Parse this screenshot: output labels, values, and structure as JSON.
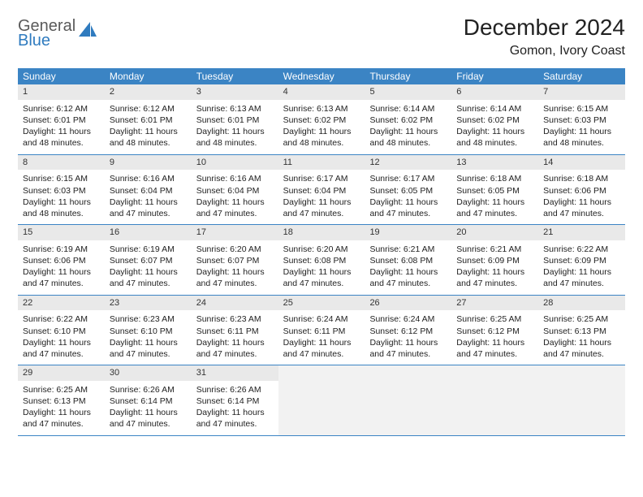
{
  "logo": {
    "line1": "General",
    "line2": "Blue"
  },
  "title": "December 2024",
  "location": "Gomon, Ivory Coast",
  "colors": {
    "header_bg": "#3b84c4",
    "header_fg": "#ffffff",
    "daynum_bg": "#e9e9e9",
    "row_border": "#3b84c4",
    "logo_blue": "#2f7bbf",
    "logo_gray": "#5a5a5a",
    "text": "#222222",
    "page_bg": "#ffffff"
  },
  "weekdays": [
    "Sunday",
    "Monday",
    "Tuesday",
    "Wednesday",
    "Thursday",
    "Friday",
    "Saturday"
  ],
  "days": [
    {
      "n": 1,
      "sunrise": "6:12 AM",
      "sunset": "6:01 PM",
      "daylight": "11 hours and 48 minutes."
    },
    {
      "n": 2,
      "sunrise": "6:12 AM",
      "sunset": "6:01 PM",
      "daylight": "11 hours and 48 minutes."
    },
    {
      "n": 3,
      "sunrise": "6:13 AM",
      "sunset": "6:01 PM",
      "daylight": "11 hours and 48 minutes."
    },
    {
      "n": 4,
      "sunrise": "6:13 AM",
      "sunset": "6:02 PM",
      "daylight": "11 hours and 48 minutes."
    },
    {
      "n": 5,
      "sunrise": "6:14 AM",
      "sunset": "6:02 PM",
      "daylight": "11 hours and 48 minutes."
    },
    {
      "n": 6,
      "sunrise": "6:14 AM",
      "sunset": "6:02 PM",
      "daylight": "11 hours and 48 minutes."
    },
    {
      "n": 7,
      "sunrise": "6:15 AM",
      "sunset": "6:03 PM",
      "daylight": "11 hours and 48 minutes."
    },
    {
      "n": 8,
      "sunrise": "6:15 AM",
      "sunset": "6:03 PM",
      "daylight": "11 hours and 48 minutes."
    },
    {
      "n": 9,
      "sunrise": "6:16 AM",
      "sunset": "6:04 PM",
      "daylight": "11 hours and 47 minutes."
    },
    {
      "n": 10,
      "sunrise": "6:16 AM",
      "sunset": "6:04 PM",
      "daylight": "11 hours and 47 minutes."
    },
    {
      "n": 11,
      "sunrise": "6:17 AM",
      "sunset": "6:04 PM",
      "daylight": "11 hours and 47 minutes."
    },
    {
      "n": 12,
      "sunrise": "6:17 AM",
      "sunset": "6:05 PM",
      "daylight": "11 hours and 47 minutes."
    },
    {
      "n": 13,
      "sunrise": "6:18 AM",
      "sunset": "6:05 PM",
      "daylight": "11 hours and 47 minutes."
    },
    {
      "n": 14,
      "sunrise": "6:18 AM",
      "sunset": "6:06 PM",
      "daylight": "11 hours and 47 minutes."
    },
    {
      "n": 15,
      "sunrise": "6:19 AM",
      "sunset": "6:06 PM",
      "daylight": "11 hours and 47 minutes."
    },
    {
      "n": 16,
      "sunrise": "6:19 AM",
      "sunset": "6:07 PM",
      "daylight": "11 hours and 47 minutes."
    },
    {
      "n": 17,
      "sunrise": "6:20 AM",
      "sunset": "6:07 PM",
      "daylight": "11 hours and 47 minutes."
    },
    {
      "n": 18,
      "sunrise": "6:20 AM",
      "sunset": "6:08 PM",
      "daylight": "11 hours and 47 minutes."
    },
    {
      "n": 19,
      "sunrise": "6:21 AM",
      "sunset": "6:08 PM",
      "daylight": "11 hours and 47 minutes."
    },
    {
      "n": 20,
      "sunrise": "6:21 AM",
      "sunset": "6:09 PM",
      "daylight": "11 hours and 47 minutes."
    },
    {
      "n": 21,
      "sunrise": "6:22 AM",
      "sunset": "6:09 PM",
      "daylight": "11 hours and 47 minutes."
    },
    {
      "n": 22,
      "sunrise": "6:22 AM",
      "sunset": "6:10 PM",
      "daylight": "11 hours and 47 minutes."
    },
    {
      "n": 23,
      "sunrise": "6:23 AM",
      "sunset": "6:10 PM",
      "daylight": "11 hours and 47 minutes."
    },
    {
      "n": 24,
      "sunrise": "6:23 AM",
      "sunset": "6:11 PM",
      "daylight": "11 hours and 47 minutes."
    },
    {
      "n": 25,
      "sunrise": "6:24 AM",
      "sunset": "6:11 PM",
      "daylight": "11 hours and 47 minutes."
    },
    {
      "n": 26,
      "sunrise": "6:24 AM",
      "sunset": "6:12 PM",
      "daylight": "11 hours and 47 minutes."
    },
    {
      "n": 27,
      "sunrise": "6:25 AM",
      "sunset": "6:12 PM",
      "daylight": "11 hours and 47 minutes."
    },
    {
      "n": 28,
      "sunrise": "6:25 AM",
      "sunset": "6:13 PM",
      "daylight": "11 hours and 47 minutes."
    },
    {
      "n": 29,
      "sunrise": "6:25 AM",
      "sunset": "6:13 PM",
      "daylight": "11 hours and 47 minutes."
    },
    {
      "n": 30,
      "sunrise": "6:26 AM",
      "sunset": "6:14 PM",
      "daylight": "11 hours and 47 minutes."
    },
    {
      "n": 31,
      "sunrise": "6:26 AM",
      "sunset": "6:14 PM",
      "daylight": "11 hours and 47 minutes."
    }
  ],
  "labels": {
    "sunrise": "Sunrise:",
    "sunset": "Sunset:",
    "daylight": "Daylight:"
  },
  "layout": {
    "start_weekday": 0,
    "days_in_month": 31,
    "columns": 7
  }
}
